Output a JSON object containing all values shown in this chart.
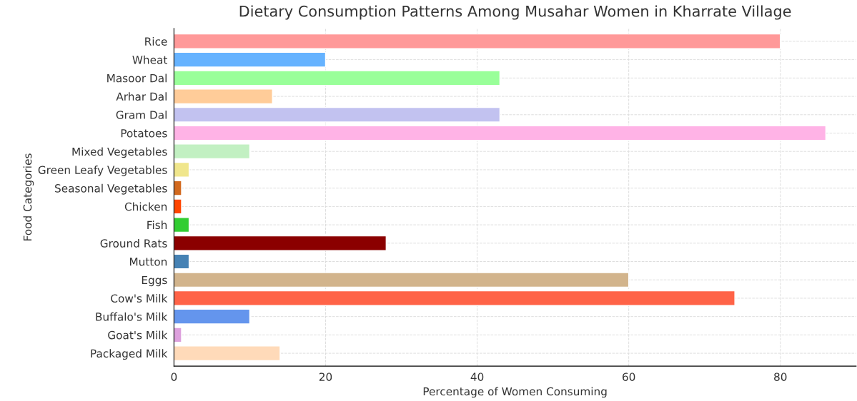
{
  "chart_data": {
    "type": "bar",
    "orientation": "horizontal",
    "title": "Dietary Consumption Patterns Among Musahar Women in Kharrate Village",
    "xlabel": "Percentage of Women Consuming",
    "ylabel": "Food Categories",
    "categories": [
      "Rice",
      "Wheat",
      "Masoor Dal",
      "Arhar Dal",
      "Gram Dal",
      "Potatoes",
      "Mixed Vegetables",
      "Green Leafy Vegetables",
      "Seasonal Vegetables",
      "Chicken",
      "Fish",
      "Ground Rats",
      "Mutton",
      "Eggs",
      "Cow's Milk",
      "Buffalo's Milk",
      "Goat's Milk",
      "Packaged Milk"
    ],
    "values": [
      80,
      20,
      43,
      13,
      43,
      86,
      10,
      2,
      1,
      1,
      2,
      28,
      2,
      60,
      74,
      10,
      1,
      14
    ],
    "colors": [
      "#ff9999",
      "#66b3ff",
      "#99ff99",
      "#ffcc99",
      "#c2c2f0",
      "#ffb3e6",
      "#c2f0c2",
      "#f0e68c",
      "#d2691e",
      "#ff4500",
      "#32cd32",
      "#8b0000",
      "#4682b4",
      "#d2b48c",
      "#ff6347",
      "#6495ed",
      "#dda0dd",
      "#ffdab9"
    ],
    "xlim": [
      0,
      90
    ],
    "xticks": [
      0,
      20,
      40,
      60,
      80
    ],
    "grid": true
  }
}
